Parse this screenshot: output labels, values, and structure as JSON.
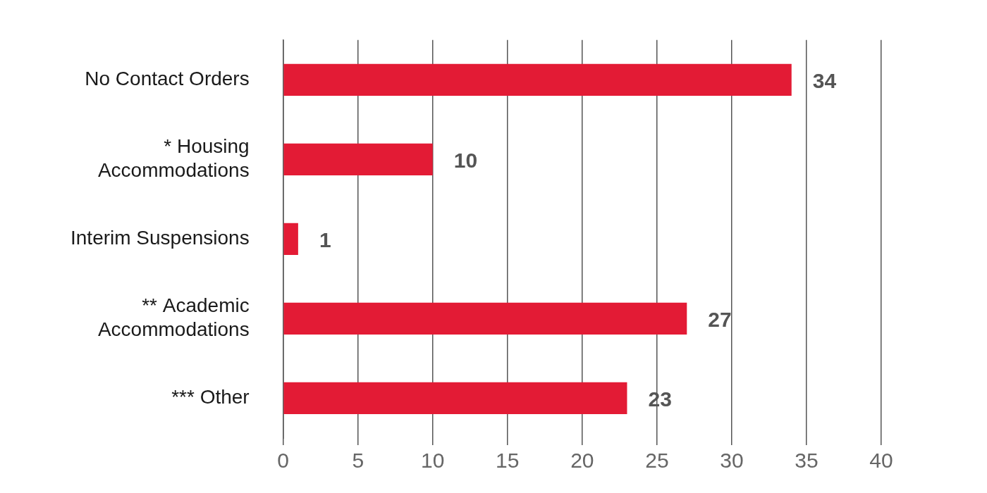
{
  "chart_data": {
    "type": "bar",
    "orientation": "horizontal",
    "categories": [
      "No Contact Orders",
      "* Housing Accommodations",
      "Interim Suspensions",
      "** Academic Accommodations",
      "*** Other"
    ],
    "values": [
      34,
      10,
      1,
      27,
      23
    ],
    "color": "#e31b35",
    "xlim": [
      0,
      40
    ],
    "xticks": [
      0,
      5,
      10,
      15,
      20,
      25,
      30,
      35,
      40
    ],
    "grid": true,
    "data_labels": true
  }
}
